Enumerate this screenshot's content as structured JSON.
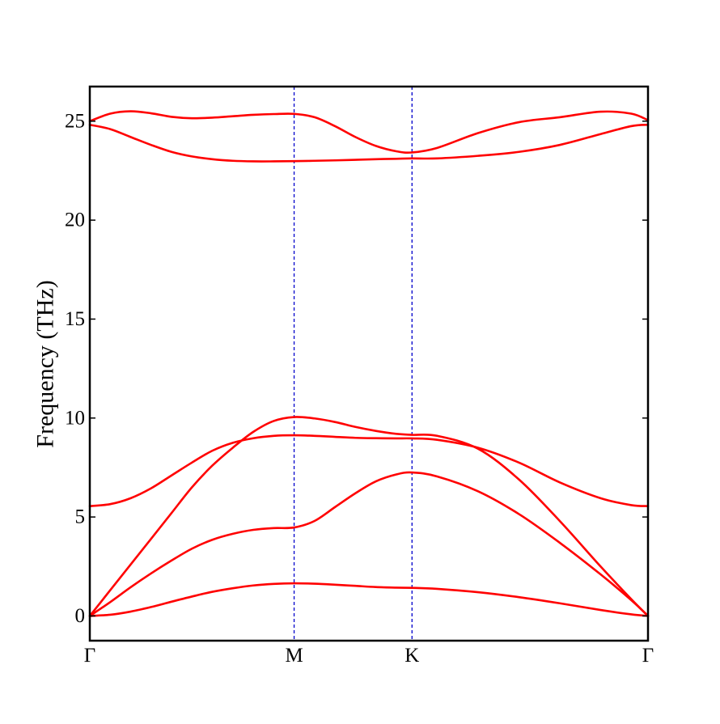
{
  "chart_data": {
    "type": "line",
    "title": "",
    "xlabel": "",
    "ylabel": "Frequency (THz)",
    "high_symmetry_points": [
      "Γ",
      "M",
      "K",
      "Γ"
    ],
    "k_positions": [
      0,
      1,
      1.577,
      2.732
    ],
    "ylim": [
      -1.25,
      26.75
    ],
    "yticks": [
      0,
      5,
      10,
      15,
      20,
      25
    ],
    "grid": false,
    "legend": "none",
    "colors": {
      "bands": "#ff0000",
      "vlines": "#0000cc",
      "axes": "#000000"
    },
    "series": [
      {
        "x": [
          0,
          0.1,
          0.2,
          0.3,
          0.4,
          0.5,
          0.6,
          0.7,
          0.8,
          0.9,
          1.0,
          1.1,
          1.2,
          1.3,
          1.4,
          1.5,
          1.577,
          1.7,
          1.9,
          2.1,
          2.3,
          2.5,
          2.65,
          2.732
        ],
        "values": [
          0,
          0.06,
          0.22,
          0.45,
          0.72,
          0.98,
          1.22,
          1.4,
          1.54,
          1.62,
          1.65,
          1.63,
          1.58,
          1.52,
          1.46,
          1.43,
          1.42,
          1.37,
          1.2,
          0.95,
          0.64,
          0.3,
          0.08,
          0
        ]
      },
      {
        "x": [
          0,
          0.1,
          0.2,
          0.3,
          0.4,
          0.5,
          0.6,
          0.7,
          0.8,
          0.9,
          1.0,
          1.1,
          1.2,
          1.3,
          1.4,
          1.5,
          1.577,
          1.7,
          1.9,
          2.1,
          2.3,
          2.5,
          2.65,
          2.732
        ],
        "values": [
          0,
          0.7,
          1.45,
          2.15,
          2.8,
          3.4,
          3.85,
          4.15,
          4.35,
          4.44,
          4.47,
          4.8,
          5.5,
          6.2,
          6.8,
          7.15,
          7.25,
          7.05,
          6.3,
          5.15,
          3.7,
          2.1,
          0.8,
          0
        ]
      },
      {
        "x": [
          0,
          0.1,
          0.2,
          0.3,
          0.4,
          0.5,
          0.6,
          0.7,
          0.8,
          0.9,
          1.0,
          1.1,
          1.2,
          1.3,
          1.4,
          1.5,
          1.577,
          1.7,
          1.9,
          2.1,
          2.3,
          2.5,
          2.65,
          2.732
        ],
        "values": [
          0,
          1.3,
          2.6,
          3.9,
          5.2,
          6.5,
          7.6,
          8.5,
          9.3,
          9.85,
          10.05,
          9.98,
          9.8,
          9.55,
          9.35,
          9.2,
          9.15,
          9.1,
          8.45,
          6.9,
          4.8,
          2.5,
          0.85,
          0
        ]
      },
      {
        "x": [
          0,
          0.1,
          0.2,
          0.3,
          0.4,
          0.5,
          0.6,
          0.7,
          0.8,
          0.9,
          1.0,
          1.1,
          1.2,
          1.3,
          1.4,
          1.5,
          1.577,
          1.7,
          1.9,
          2.1,
          2.3,
          2.5,
          2.65,
          2.732
        ],
        "values": [
          5.55,
          5.65,
          5.95,
          6.45,
          7.1,
          7.75,
          8.35,
          8.75,
          8.98,
          9.1,
          9.13,
          9.1,
          9.05,
          9.0,
          8.98,
          8.97,
          8.97,
          8.9,
          8.5,
          7.75,
          6.75,
          5.95,
          5.6,
          5.55
        ]
      },
      {
        "x": [
          0,
          0.1,
          0.2,
          0.3,
          0.4,
          0.5,
          0.6,
          0.7,
          0.8,
          0.9,
          1.0,
          1.1,
          1.2,
          1.3,
          1.4,
          1.5,
          1.577,
          1.7,
          1.9,
          2.1,
          2.3,
          2.5,
          2.65,
          2.732
        ],
        "values": [
          24.82,
          24.6,
          24.2,
          23.8,
          23.45,
          23.22,
          23.08,
          23.0,
          22.97,
          22.97,
          22.98,
          23.0,
          23.02,
          23.05,
          23.08,
          23.1,
          23.12,
          23.12,
          23.25,
          23.45,
          23.8,
          24.35,
          24.75,
          24.82
        ]
      },
      {
        "x": [
          0,
          0.1,
          0.2,
          0.3,
          0.4,
          0.5,
          0.6,
          0.7,
          0.8,
          0.9,
          1.0,
          1.1,
          1.2,
          1.3,
          1.4,
          1.5,
          1.577,
          1.7,
          1.9,
          2.1,
          2.3,
          2.5,
          2.65,
          2.732
        ],
        "values": [
          25.0,
          25.38,
          25.5,
          25.4,
          25.22,
          25.15,
          25.18,
          25.25,
          25.32,
          25.36,
          25.37,
          25.2,
          24.75,
          24.2,
          23.75,
          23.48,
          23.42,
          23.65,
          24.4,
          24.95,
          25.2,
          25.48,
          25.38,
          25.05
        ]
      }
    ]
  }
}
